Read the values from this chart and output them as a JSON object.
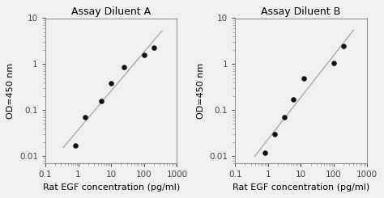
{
  "panel_A": {
    "title": "Assay Diluent A",
    "x": [
      0.8,
      1.6,
      5.0,
      10.0,
      25.0,
      100.0,
      200.0
    ],
    "y": [
      0.017,
      0.07,
      0.16,
      0.38,
      0.85,
      1.6,
      2.3
    ],
    "xlabel": "Rat EGF concentration (pg/ml)",
    "ylabel": "OD=450 nm",
    "xlim": [
      0.1,
      1000
    ],
    "ylim": [
      0.007,
      10
    ],
    "fit_xlim": [
      0.35,
      350
    ]
  },
  "panel_B": {
    "title": "Assay Diluent B",
    "x": [
      0.8,
      1.6,
      3.2,
      6.0,
      12.0,
      100.0,
      200.0
    ],
    "y": [
      0.012,
      0.03,
      0.07,
      0.17,
      0.5,
      1.05,
      2.5
    ],
    "xlabel": "Rat EGF concentration (pg/ml)",
    "ylabel": "OD=450 nm",
    "xlim": [
      0.1,
      1000
    ],
    "ylim": [
      0.007,
      10
    ],
    "fit_xlim": [
      0.4,
      400
    ]
  },
  "dot_color": "#111111",
  "line_color": "#aaaaaa",
  "bg_color": "#f0f0f0",
  "title_fontsize": 9,
  "label_fontsize": 8,
  "tick_fontsize": 7.5,
  "dot_size": 22,
  "ytick_labels": [
    "0.01",
    "0.1",
    "1",
    "10"
  ],
  "ytick_values": [
    0.01,
    0.1,
    1,
    10
  ],
  "xtick_labels": [
    "0.1",
    "1",
    "10",
    "100",
    "1000"
  ],
  "xtick_values": [
    0.1,
    1,
    10,
    100,
    1000
  ]
}
